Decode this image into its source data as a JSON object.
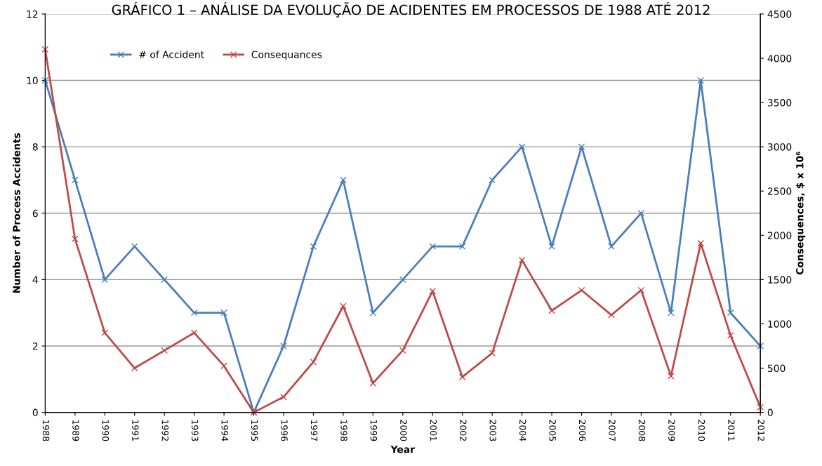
{
  "chart_data": {
    "type": "line",
    "title": "GRÁFICO 1 – ANÁLISE DA EVOLUÇÃO DE ACIDENTES EM PROCESSOS DE 1988 ATÉ 2012",
    "xlabel": "Year",
    "ylabel": "Number of Process Accidents",
    "y2label": "Consequences, $ x 10⁶",
    "categories": [
      "1988",
      "1989",
      "1990",
      "1991",
      "1992",
      "1993",
      "1994",
      "1995",
      "1996",
      "1997",
      "1998",
      "1999",
      "2000",
      "2001",
      "2002",
      "2003",
      "2004",
      "2005",
      "2006",
      "2007",
      "2008",
      "2009",
      "2010",
      "2011",
      "2012"
    ],
    "series": [
      {
        "name": "# of Accident",
        "color": "#4a7ebb",
        "marker": "cross",
        "values": [
          10,
          7,
          4,
          5,
          4,
          3,
          3,
          0,
          2,
          5,
          7,
          3,
          4,
          5,
          5,
          7,
          8,
          5,
          8,
          5,
          6,
          3,
          10,
          3,
          2
        ]
      },
      {
        "name": "Consequances",
        "color": "#be4b48",
        "marker": "cross",
        "axis": "y2",
        "values": [
          4100,
          1960,
          900,
          500,
          700,
          900,
          525,
          0,
          175,
          570,
          1200,
          330,
          700,
          1370,
          400,
          670,
          1720,
          1150,
          1380,
          1100,
          1380,
          410,
          1910,
          870,
          60
        ]
      }
    ],
    "ylim": [
      0,
      12
    ],
    "yticks": [
      0,
      2,
      4,
      6,
      8,
      10,
      12
    ],
    "y2lim": [
      0,
      4500
    ],
    "y2ticks": [
      0,
      500,
      1000,
      1500,
      2000,
      2500,
      3000,
      3500,
      4000,
      4500
    ],
    "grid": "y",
    "legend": "top left",
    "line_style": "solid"
  }
}
